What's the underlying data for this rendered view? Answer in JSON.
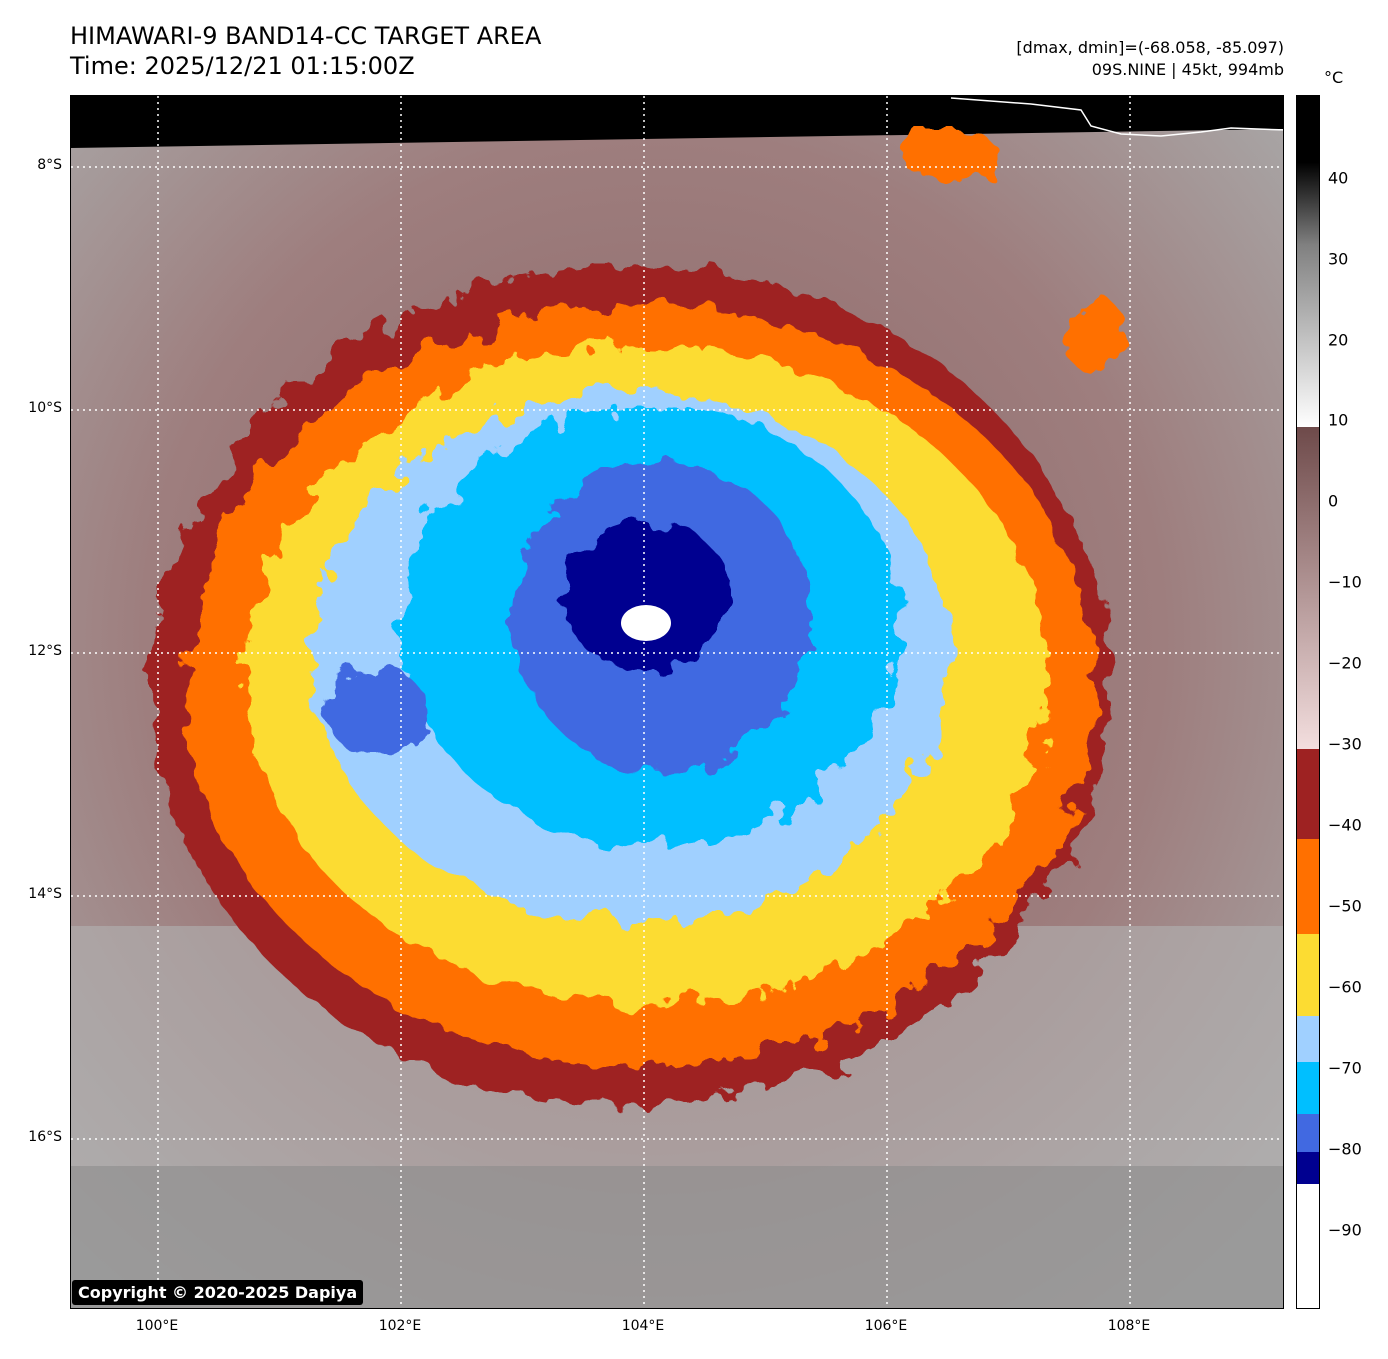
{
  "title": {
    "line1": "HIMAWARI-9 BAND14-CC TARGET AREA",
    "line2": "Time: 2025/12/21 01:15:00Z"
  },
  "info": {
    "range": "[dmax, dmin]=(-68.058, -85.097)",
    "storm": "09S.NINE | 45kt, 994mb"
  },
  "colorbar": {
    "unit": "°C",
    "ticks": [
      "40",
      "30",
      "20",
      "10",
      "0",
      "−10",
      "−20",
      "−30",
      "−40",
      "−50",
      "−60",
      "−70",
      "−80",
      "−90"
    ]
  },
  "lat_labels": [
    "8°S",
    "10°S",
    "12°S",
    "14°S",
    "16°S"
  ],
  "lon_labels": [
    "100°E",
    "102°E",
    "104°E",
    "106°E",
    "108°E"
  ],
  "copyright": "Copyright © 2020-2025 Dapiya"
}
